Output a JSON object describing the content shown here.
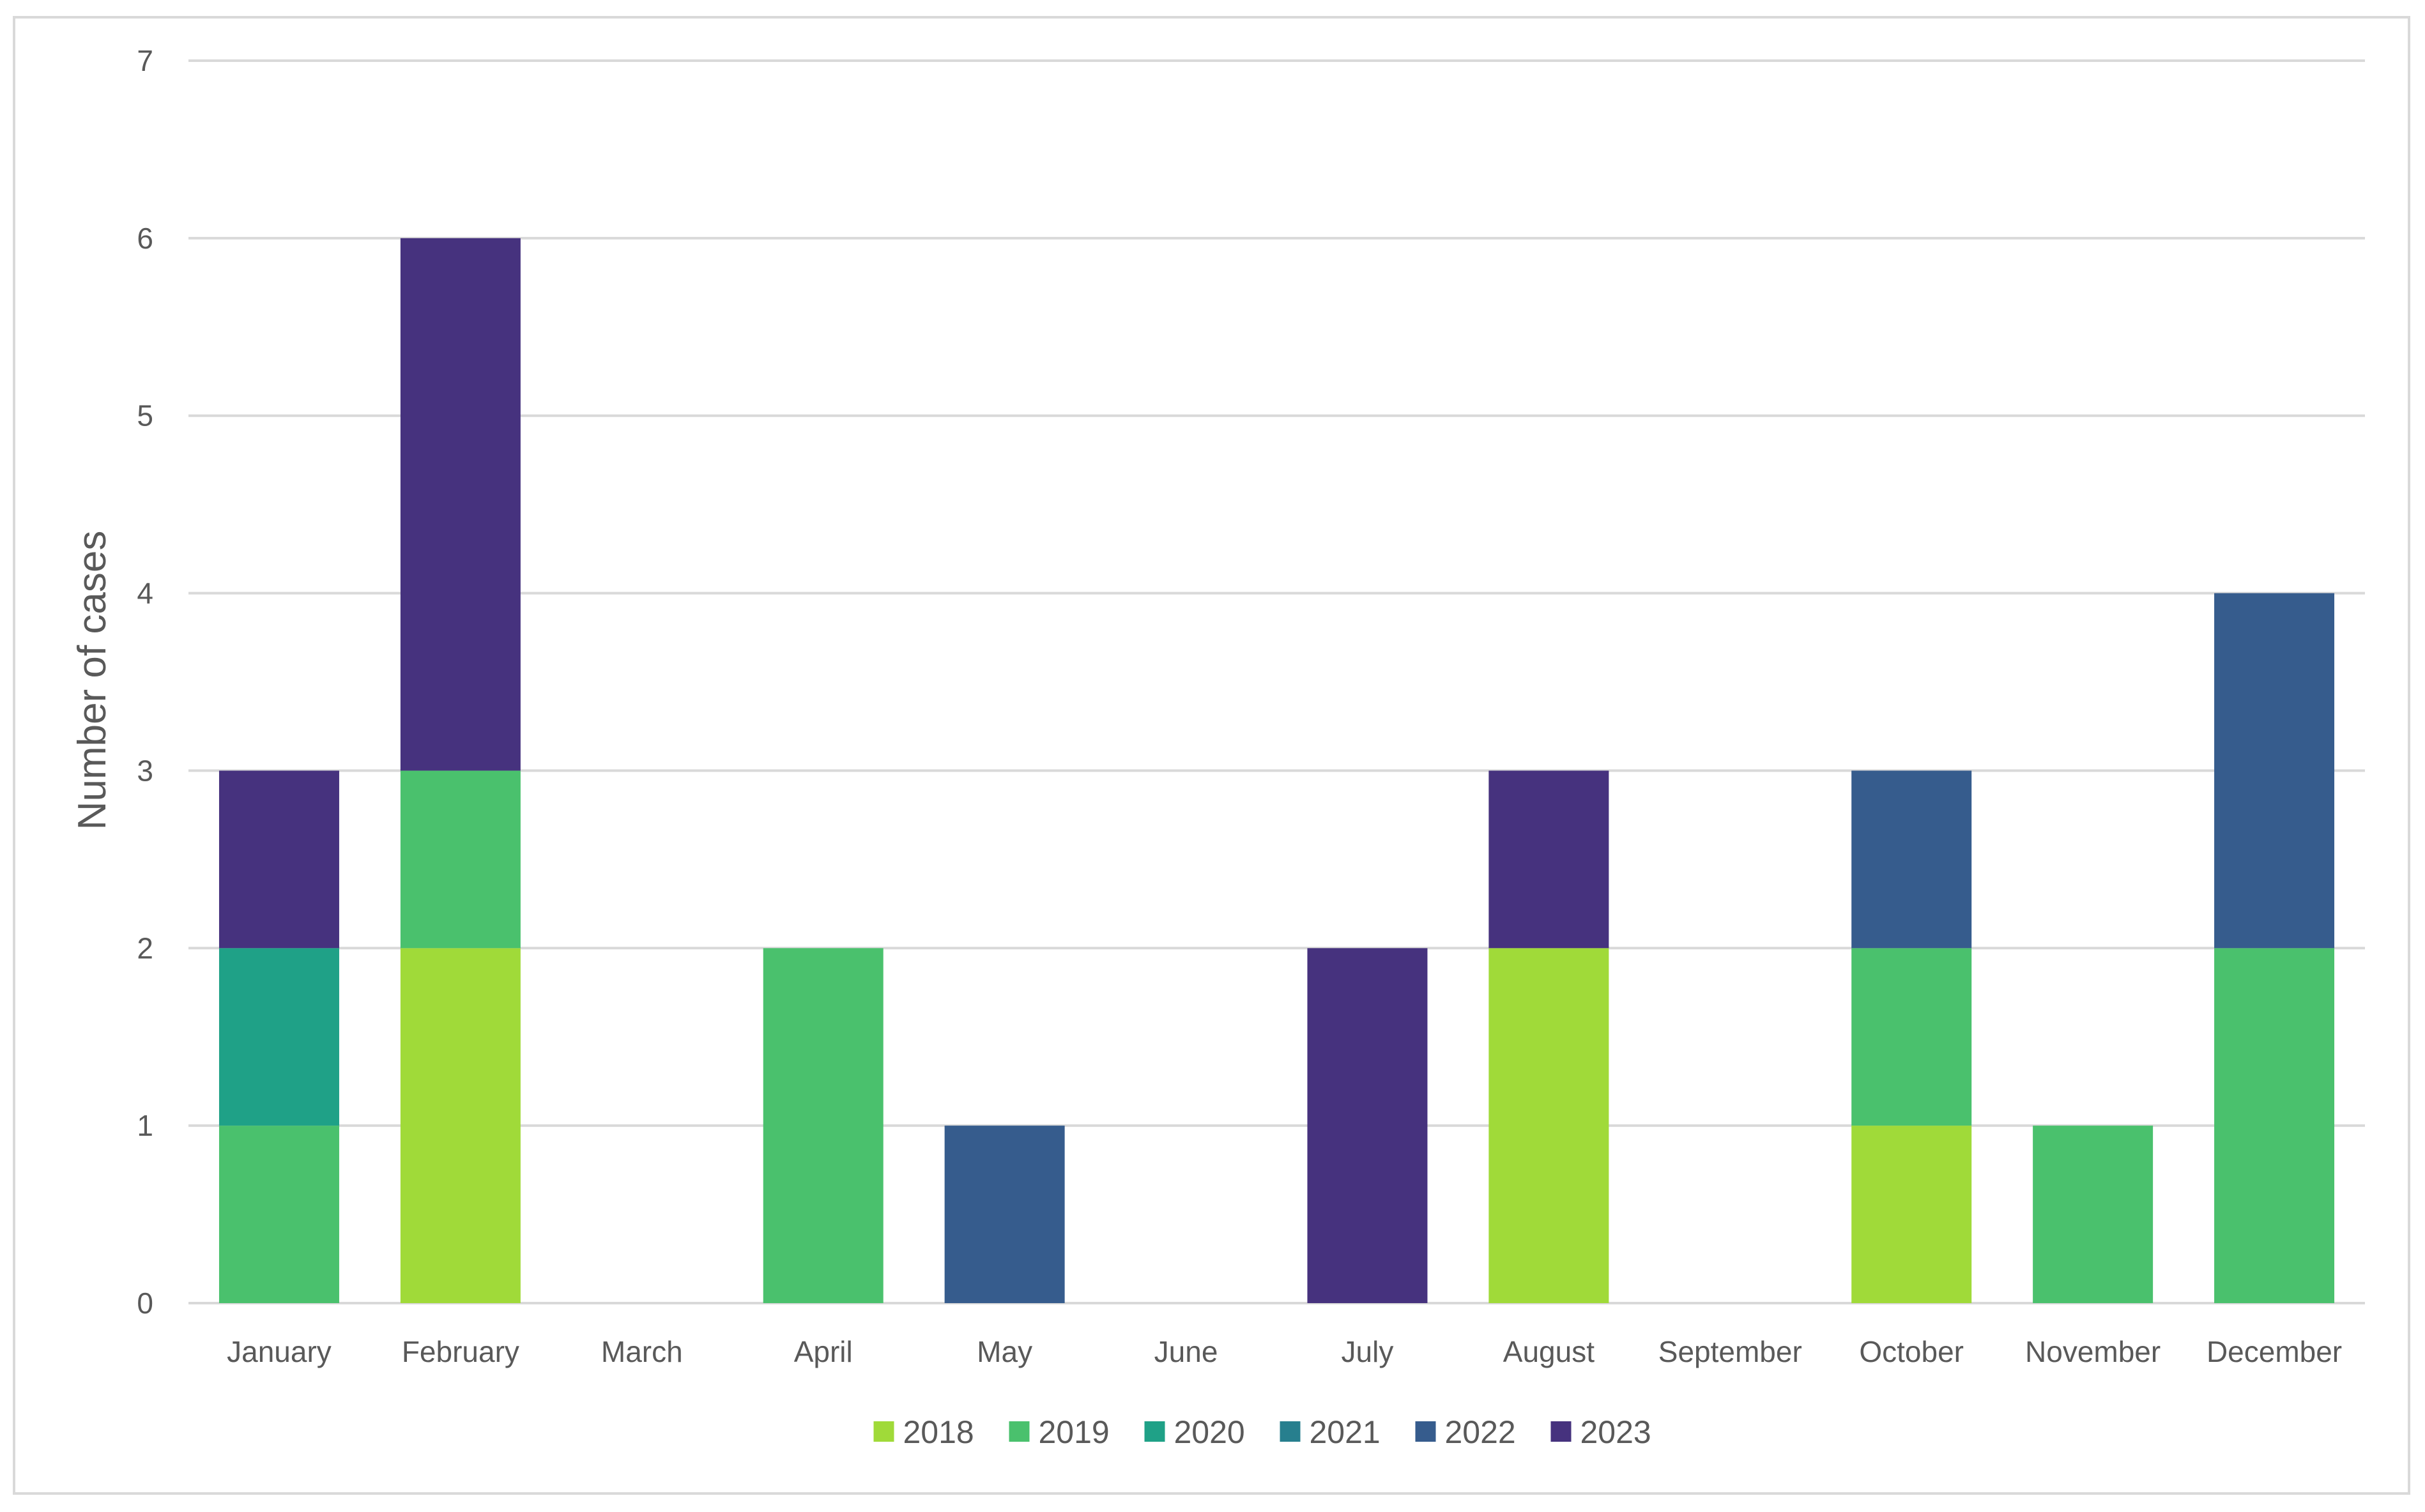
{
  "chart_data": {
    "type": "bar",
    "stacked": true,
    "title": "",
    "xlabel": "",
    "ylabel": "Number of cases",
    "ylim": [
      0,
      7
    ],
    "yticks": [
      0,
      1,
      2,
      3,
      4,
      5,
      6,
      7
    ],
    "yticks_labels": [
      "0",
      "1",
      "2",
      "3",
      "4",
      "5",
      "6",
      "7"
    ],
    "grid": true,
    "legend_position": "bottom",
    "categories": [
      "January",
      "February",
      "March",
      "April",
      "May",
      "June",
      "July",
      "August",
      "September",
      "October",
      "November",
      "December"
    ],
    "series": [
      {
        "name": "2018",
        "color": "#a0da39",
        "values": [
          0,
          2,
          0,
          0,
          0,
          0,
          0,
          2,
          0,
          1,
          0,
          0
        ]
      },
      {
        "name": "2019",
        "color": "#4ac16d",
        "values": [
          1,
          1,
          0,
          2,
          0,
          0,
          0,
          0,
          0,
          1,
          1,
          2
        ]
      },
      {
        "name": "2020",
        "color": "#1fa187",
        "values": [
          1,
          0,
          0,
          0,
          0,
          0,
          0,
          0,
          0,
          0,
          0,
          0
        ]
      },
      {
        "name": "2021",
        "color": "#277f8e",
        "values": [
          0,
          0,
          0,
          0,
          0,
          0,
          0,
          0,
          0,
          0,
          0,
          0
        ]
      },
      {
        "name": "2022",
        "color": "#365c8d",
        "values": [
          0,
          0,
          0,
          0,
          1,
          0,
          0,
          0,
          0,
          1,
          0,
          2
        ]
      },
      {
        "name": "2023",
        "color": "#46327e",
        "values": [
          1,
          3,
          0,
          0,
          0,
          0,
          2,
          1,
          0,
          0,
          0,
          0
        ]
      }
    ]
  }
}
